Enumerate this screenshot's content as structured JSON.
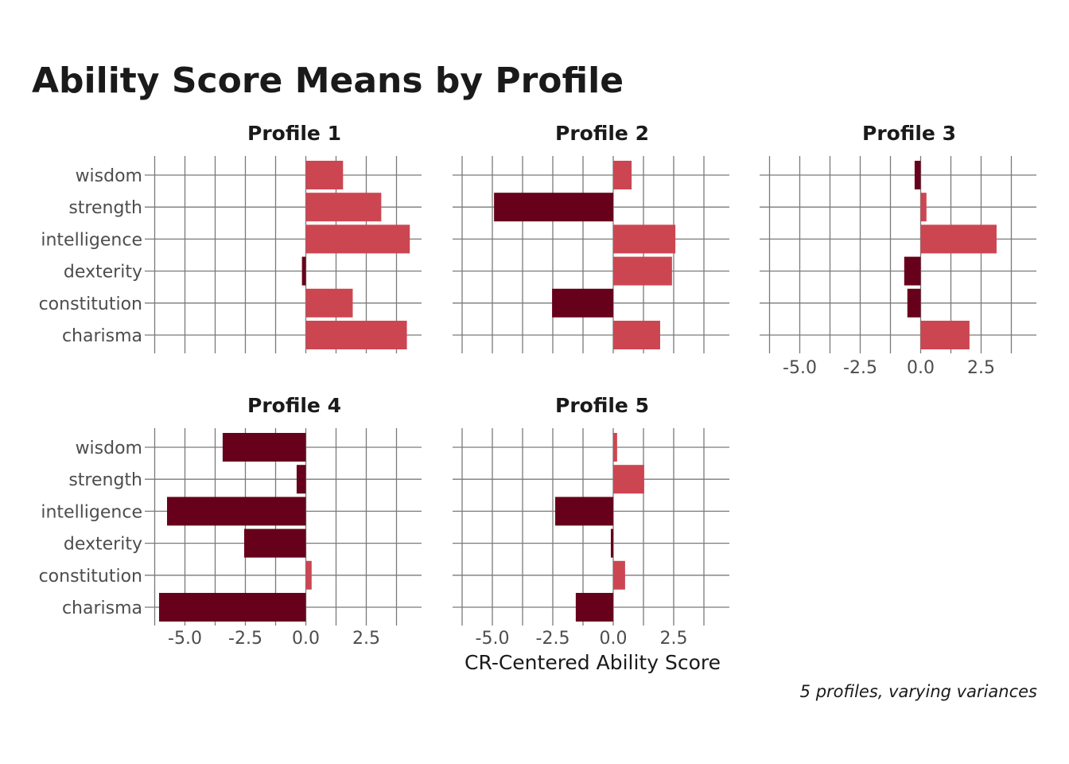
{
  "chart_data": {
    "type": "bar",
    "orientation": "horizontal",
    "title": "Ability Score Means by Profile",
    "xlabel": "CR-Centered Ability Score",
    "ylabel": "",
    "caption": "5 profiles, varying variances",
    "xlim": [
      -6.25,
      4.6
    ],
    "x_ticks": [
      -5.0,
      -2.5,
      0.0,
      2.5
    ],
    "x_tick_labels": [
      "-5.0",
      "-2.5",
      "0.0",
      "2.5"
    ],
    "x_minor_step": 1.25,
    "grid": true,
    "legend": "none",
    "colors": {
      "positive": "#CC4651",
      "negative": "#67001A"
    },
    "categories": [
      "wisdom",
      "strength",
      "intelligence",
      "dexterity",
      "constitution",
      "charisma"
    ],
    "series": [
      {
        "name": "Profile 1",
        "values": [
          1.54,
          3.12,
          4.3,
          -0.16,
          1.94,
          4.18
        ]
      },
      {
        "name": "Profile 2",
        "values": [
          0.76,
          -4.93,
          2.57,
          2.43,
          -2.53,
          1.94
        ]
      },
      {
        "name": "Profile 3",
        "values": [
          -0.25,
          0.24,
          3.14,
          -0.68,
          -0.55,
          2.02
        ]
      },
      {
        "name": "Profile 4",
        "values": [
          -3.44,
          -0.38,
          -5.74,
          -2.55,
          0.24,
          -6.07
        ]
      },
      {
        "name": "Profile 5",
        "values": [
          0.16,
          1.28,
          -2.4,
          -0.1,
          0.49,
          -1.55
        ]
      }
    ]
  }
}
